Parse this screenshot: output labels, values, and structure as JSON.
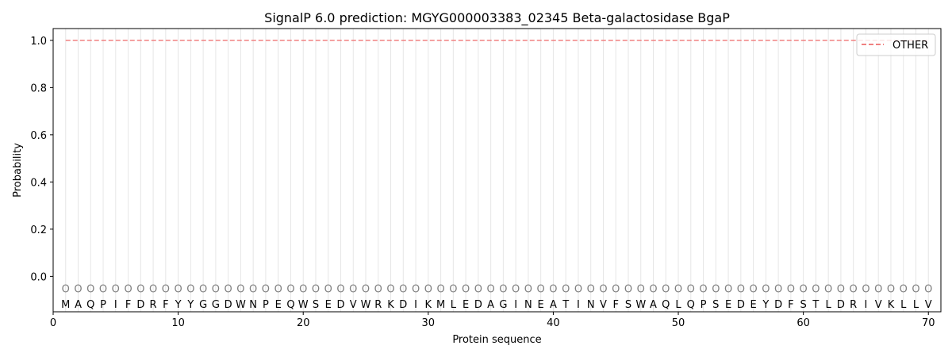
{
  "chart_data": {
    "type": "line",
    "title": "SignalP 6.0 prediction: MGYG000003383_02345 Beta-galactosidase BgaP",
    "xlabel": "Protein sequence",
    "ylabel": "Probability",
    "xlim": [
      0,
      71
    ],
    "ylim": [
      -0.15,
      1.05
    ],
    "xticks": [
      0,
      10,
      20,
      30,
      40,
      50,
      60,
      70
    ],
    "yticks": [
      0.0,
      0.2,
      0.4,
      0.6,
      0.8,
      1.0
    ],
    "ytick_labels": [
      "0.0",
      "0.2",
      "0.4",
      "0.6",
      "0.8",
      "1.0"
    ],
    "grid": "vertical lines at each residue",
    "legend_position": "top-right",
    "sequence": [
      "M",
      "A",
      "Q",
      "P",
      "I",
      "F",
      "D",
      "R",
      "F",
      "Y",
      "Y",
      "G",
      "G",
      "D",
      "W",
      "N",
      "P",
      "E",
      "Q",
      "W",
      "S",
      "E",
      "D",
      "V",
      "W",
      "R",
      "K",
      "D",
      "I",
      "K",
      "M",
      "L",
      "E",
      "D",
      "A",
      "G",
      "I",
      "N",
      "E",
      "A",
      "T",
      "I",
      "N",
      "V",
      "F",
      "S",
      "W",
      "A",
      "Q",
      "L",
      "Q",
      "P",
      "S",
      "E",
      "D",
      "E",
      "Y",
      "D",
      "F",
      "S",
      "T",
      "L",
      "D",
      "R",
      "I",
      "V",
      "K",
      "L",
      "L",
      "V"
    ],
    "region_label": "O",
    "series": [
      {
        "name": "OTHER",
        "color": "#f08080",
        "style": "dashed",
        "x_range": [
          1,
          70
        ],
        "values": [
          1.0,
          1.0,
          1.0,
          1.0,
          1.0,
          1.0,
          1.0,
          1.0,
          1.0,
          1.0,
          1.0,
          1.0,
          1.0,
          1.0,
          1.0,
          1.0,
          1.0,
          1.0,
          1.0,
          1.0,
          1.0,
          1.0,
          1.0,
          1.0,
          1.0,
          1.0,
          1.0,
          1.0,
          1.0,
          1.0,
          1.0,
          1.0,
          1.0,
          1.0,
          1.0,
          1.0,
          1.0,
          1.0,
          1.0,
          1.0,
          1.0,
          1.0,
          1.0,
          1.0,
          1.0,
          1.0,
          1.0,
          1.0,
          1.0,
          1.0,
          1.0,
          1.0,
          1.0,
          1.0,
          1.0,
          1.0,
          1.0,
          1.0,
          1.0,
          1.0,
          1.0,
          1.0,
          1.0,
          1.0,
          1.0,
          1.0,
          1.0,
          1.0,
          1.0,
          1.0
        ]
      }
    ]
  }
}
